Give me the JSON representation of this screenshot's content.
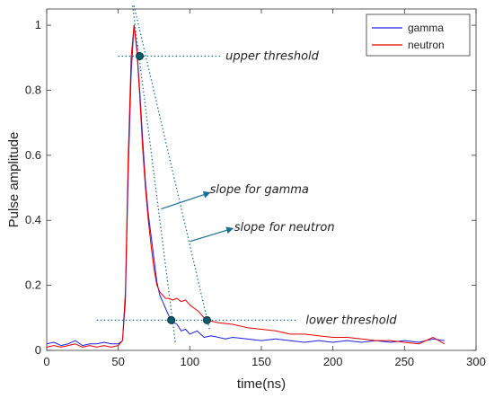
{
  "chart_data": {
    "type": "line",
    "xlabel": "time(ns)",
    "ylabel": "Pulse amplitude",
    "xlim": [
      0,
      300
    ],
    "ylim": [
      0,
      1.05
    ],
    "x_ticks": [
      0,
      50,
      100,
      150,
      200,
      250,
      300
    ],
    "y_ticks": [
      0,
      0.2,
      0.4,
      0.6,
      0.8,
      1
    ],
    "grid": false,
    "legend_position": "top-right",
    "series": [
      {
        "name": "gamma",
        "color": "#1f1fe6",
        "points": [
          [
            0,
            0.02
          ],
          [
            5,
            0.025
          ],
          [
            10,
            0.015
          ],
          [
            15,
            0.02
          ],
          [
            20,
            0.03
          ],
          [
            25,
            0.015
          ],
          [
            30,
            0.02
          ],
          [
            35,
            0.02
          ],
          [
            40,
            0.025
          ],
          [
            45,
            0.02
          ],
          [
            50,
            0.02
          ],
          [
            53,
            0.03
          ],
          [
            55,
            0.15
          ],
          [
            57,
            0.55
          ],
          [
            59,
            0.85
          ],
          [
            61,
            1.0
          ],
          [
            63,
            0.93
          ],
          [
            65,
            0.8
          ],
          [
            67,
            0.65
          ],
          [
            69,
            0.52
          ],
          [
            71,
            0.42
          ],
          [
            73,
            0.35
          ],
          [
            75,
            0.28
          ],
          [
            77,
            0.21
          ],
          [
            79,
            0.17
          ],
          [
            81,
            0.15
          ],
          [
            83,
            0.13
          ],
          [
            85,
            0.11
          ],
          [
            87,
            0.09
          ],
          [
            89,
            0.085
          ],
          [
            91,
            0.08
          ],
          [
            94,
            0.06
          ],
          [
            97,
            0.065
          ],
          [
            100,
            0.05
          ],
          [
            105,
            0.06
          ],
          [
            110,
            0.04
          ],
          [
            115,
            0.045
          ],
          [
            120,
            0.04
          ],
          [
            125,
            0.035
          ],
          [
            130,
            0.04
          ],
          [
            140,
            0.035
          ],
          [
            150,
            0.03
          ],
          [
            160,
            0.035
          ],
          [
            170,
            0.03
          ],
          [
            180,
            0.025
          ],
          [
            190,
            0.03
          ],
          [
            200,
            0.025
          ],
          [
            210,
            0.03
          ],
          [
            220,
            0.025
          ],
          [
            230,
            0.03
          ],
          [
            240,
            0.025
          ],
          [
            250,
            0.03
          ],
          [
            260,
            0.025
          ],
          [
            270,
            0.035
          ],
          [
            278,
            0.03
          ]
        ]
      },
      {
        "name": "neutron",
        "color": "#e60000",
        "points": [
          [
            0,
            0.01
          ],
          [
            5,
            0.015
          ],
          [
            10,
            0.01
          ],
          [
            15,
            0.015
          ],
          [
            20,
            0.02
          ],
          [
            25,
            0.01
          ],
          [
            30,
            0.015
          ],
          [
            35,
            0.01
          ],
          [
            40,
            0.015
          ],
          [
            45,
            0.01
          ],
          [
            50,
            0.015
          ],
          [
            53,
            0.03
          ],
          [
            55,
            0.18
          ],
          [
            57,
            0.6
          ],
          [
            59,
            0.9
          ],
          [
            61,
            1.0
          ],
          [
            63,
            0.92
          ],
          [
            65,
            0.78
          ],
          [
            67,
            0.62
          ],
          [
            69,
            0.5
          ],
          [
            71,
            0.4
          ],
          [
            73,
            0.32
          ],
          [
            75,
            0.25
          ],
          [
            77,
            0.2
          ],
          [
            79,
            0.18
          ],
          [
            81,
            0.17
          ],
          [
            83,
            0.16
          ],
          [
            85,
            0.16
          ],
          [
            88,
            0.155
          ],
          [
            91,
            0.16
          ],
          [
            94,
            0.15
          ],
          [
            97,
            0.155
          ],
          [
            100,
            0.14
          ],
          [
            103,
            0.13
          ],
          [
            106,
            0.12
          ],
          [
            110,
            0.1
          ],
          [
            115,
            0.09
          ],
          [
            120,
            0.085
          ],
          [
            130,
            0.08
          ],
          [
            140,
            0.07
          ],
          [
            150,
            0.065
          ],
          [
            160,
            0.06
          ],
          [
            170,
            0.05
          ],
          [
            180,
            0.05
          ],
          [
            190,
            0.045
          ],
          [
            200,
            0.04
          ],
          [
            210,
            0.04
          ],
          [
            220,
            0.035
          ],
          [
            230,
            0.03
          ],
          [
            240,
            0.03
          ],
          [
            250,
            0.025
          ],
          [
            260,
            0.02
          ],
          [
            270,
            0.04
          ],
          [
            278,
            0.02
          ]
        ]
      }
    ],
    "reference_lines": [
      {
        "role": "upper threshold",
        "from": [
          50,
          0.905
        ],
        "to": [
          122,
          0.905
        ]
      },
      {
        "role": "lower threshold",
        "from": [
          35,
          0.093
        ],
        "to": [
          175,
          0.093
        ]
      },
      {
        "role": "gamma slope",
        "from": [
          60,
          1.06
        ],
        "to": [
          90,
          0.02
        ]
      },
      {
        "role": "neutron slope",
        "from": [
          61,
          1.06
        ],
        "to": [
          114,
          0.06
        ]
      }
    ],
    "markers": [
      {
        "x": 65,
        "y": 0.905
      },
      {
        "x": 87,
        "y": 0.093
      },
      {
        "x": 112,
        "y": 0.093
      }
    ],
    "annotations": [
      {
        "text": "upper threshold",
        "x": 125,
        "y": 0.905
      },
      {
        "text": "slope for gamma",
        "x": 114,
        "y": 0.495
      },
      {
        "text": "slope for neutron",
        "x": 131,
        "y": 0.378
      },
      {
        "text": "lower threshold",
        "x": 181,
        "y": 0.093
      }
    ],
    "annotation_arrows": [
      {
        "from": [
          80,
          0.435
        ],
        "to": [
          114,
          0.485
        ]
      },
      {
        "from": [
          100,
          0.335
        ],
        "to": [
          130,
          0.375
        ]
      }
    ],
    "reference_color": "#1a6f8c",
    "arrow_color": "#1a6f8c"
  }
}
